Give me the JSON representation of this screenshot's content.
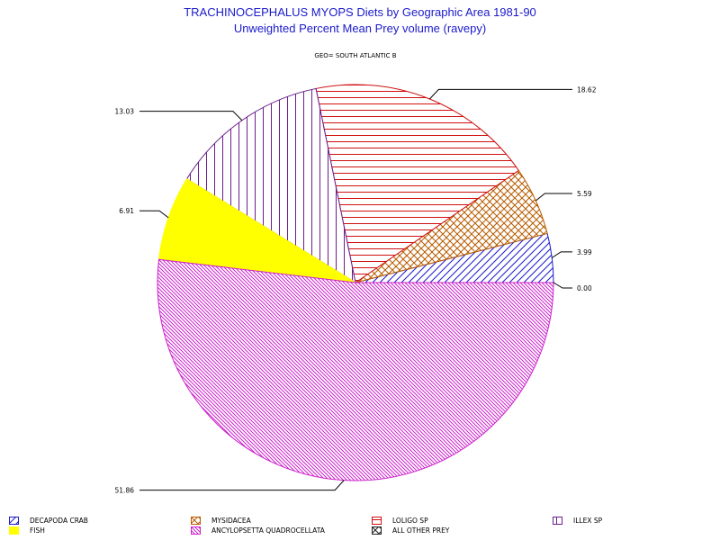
{
  "title_line1": "TRACHINOCEPHALUS MYOPS Diets by Geographic Area 1981-90",
  "title_line2": "Unweighted Percent Mean Prey volume (ravepy)",
  "subtitle": "GEO= SOUTH ATLANTIC B",
  "chart_data": {
    "type": "pie",
    "title": "TRACHINOCEPHALUS MYOPS Diets by Geographic Area 1981-90",
    "subtitle": "Unweighted Percent Mean Prey volume (ravepy)",
    "start_angle_deg": 0,
    "direction": "counterclockwise",
    "slices": [
      {
        "name": "ALL OTHER PREY",
        "value": 0.0,
        "label": "0.00",
        "color": "#222222",
        "pattern": "cross"
      },
      {
        "name": "DECAPODA CRAB",
        "value": 3.99,
        "label": "3.99",
        "color": "#1a1acc",
        "pattern": "diag-up"
      },
      {
        "name": "MYSIDACEA",
        "value": 5.59,
        "label": "5.59",
        "color": "#b85c00",
        "pattern": "cross"
      },
      {
        "name": "LOLIGO SP",
        "value": 18.62,
        "label": "18.62",
        "color": "#d01010",
        "pattern": "horizontal"
      },
      {
        "name": "ILLEX SP",
        "value": 13.03,
        "label": "13.03",
        "color": "#6a1f8c",
        "pattern": "vertical"
      },
      {
        "name": "FISH",
        "value": 6.91,
        "label": "6.91",
        "color": "#ffff00",
        "pattern": "solid"
      },
      {
        "name": "ANCYLOPSETTA QUADROCELLATA",
        "value": 51.86,
        "label": "51.86",
        "color": "#cc22cc",
        "pattern": "diag-down"
      }
    ]
  },
  "legend": [
    {
      "label": "DECAPODA CRAB",
      "color": "#1a1acc",
      "pattern": "diag-up"
    },
    {
      "label": "MYSIDACEA",
      "color": "#b85c00",
      "pattern": "cross"
    },
    {
      "label": "LOLIGO SP",
      "color": "#d01010",
      "pattern": "horizontal"
    },
    {
      "label": "ILLEX SP",
      "color": "#6a1f8c",
      "pattern": "vertical"
    },
    {
      "label": "FISH",
      "color": "#ffff00",
      "pattern": "solid"
    },
    {
      "label": "ANCYLOPSETTA QUADROCELLATA",
      "color": "#cc22cc",
      "pattern": "diag-down"
    },
    {
      "label": "ALL OTHER PREY",
      "color": "#222222",
      "pattern": "cross"
    }
  ]
}
